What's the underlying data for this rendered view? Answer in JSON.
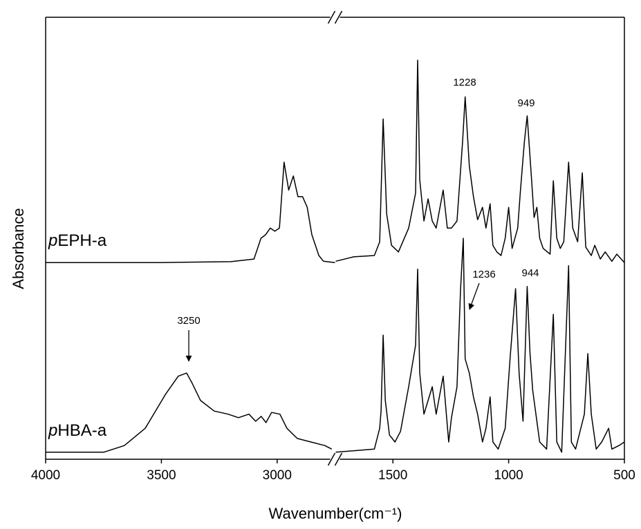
{
  "chart_data": {
    "type": "line",
    "x_label": "Wavenumber(cm⁻¹)",
    "y_label": "Absorbance",
    "xlim": [
      4000,
      500
    ],
    "xbreak": [
      2750,
      1750
    ],
    "xticks": [
      4000,
      3500,
      3000,
      1500,
      1000,
      500
    ],
    "ylim": [
      0,
      100
    ],
    "color": "#000000",
    "annotations": [
      "1228",
      "949",
      "3250",
      "1236",
      "944"
    ],
    "series": [
      {
        "name": "pEPH-a",
        "color": "#000000",
        "x": [
          4000,
          3500,
          3200,
          3100,
          3070,
          3050,
          3030,
          3010,
          2990,
          2970,
          2950,
          2930,
          2910,
          2890,
          2870,
          2850,
          2820,
          2800,
          2750,
          1747,
          1670,
          1580,
          1557,
          1542,
          1527,
          1506,
          1476,
          1432,
          1402,
          1393,
          1384,
          1366,
          1348,
          1330,
          1313,
          1283,
          1265,
          1247,
          1223,
          1199,
          1188,
          1170,
          1152,
          1134,
          1113,
          1098,
          1080,
          1068,
          1051,
          1033,
          1015,
          1000,
          985,
          961,
          949,
          932,
          920,
          902,
          890,
          878,
          866,
          851,
          821,
          807,
          792,
          777,
          762,
          741,
          723,
          702,
          682,
          667,
          643,
          628,
          604,
          583,
          554,
          533,
          500
        ],
        "values": [
          44.5,
          44.5,
          44.7,
          45.3,
          50.0,
          50.8,
          52.3,
          51.6,
          52.3,
          67.2,
          60.9,
          64.1,
          59.4,
          59.4,
          57.0,
          50.8,
          46.1,
          44.8,
          44.5,
          44.8,
          45.8,
          46.1,
          49.2,
          77.0,
          55.5,
          48.4,
          46.9,
          52.3,
          60.2,
          90.3,
          63.3,
          53.9,
          58.9,
          53.9,
          52.3,
          60.9,
          52.3,
          52.3,
          53.9,
          71.9,
          82.0,
          66.4,
          59.4,
          54.2,
          57.0,
          52.3,
          57.8,
          48.4,
          46.9,
          46.1,
          50.0,
          57.0,
          47.7,
          52.3,
          60.9,
          71.9,
          77.7,
          64.1,
          54.7,
          57.0,
          50.0,
          47.7,
          46.4,
          63.0,
          50.0,
          47.7,
          49.2,
          67.2,
          52.3,
          49.2,
          64.8,
          48.0,
          46.1,
          48.4,
          45.3,
          46.9,
          44.8,
          46.4,
          44.5
        ]
      },
      {
        "name": "pHBA-a",
        "color": "#000000",
        "x": [
          4000,
          3749,
          3660,
          3570,
          3481,
          3427,
          3391,
          3367,
          3331,
          3272,
          3212,
          3167,
          3122,
          3093,
          3069,
          3048,
          3024,
          2988,
          2958,
          2913,
          2854,
          2794,
          2764,
          1747,
          1580,
          1557,
          1551,
          1542,
          1533,
          1515,
          1491,
          1467,
          1432,
          1402,
          1393,
          1384,
          1366,
          1348,
          1330,
          1313,
          1283,
          1259,
          1247,
          1223,
          1208,
          1196,
          1188,
          1170,
          1152,
          1134,
          1113,
          1098,
          1080,
          1068,
          1045,
          1015,
          994,
          970,
          955,
          938,
          920,
          908,
          896,
          878,
          866,
          836,
          807,
          792,
          771,
          741,
          729,
          711,
          673,
          658,
          643,
          622,
          598,
          568,
          554,
          524,
          500
        ],
        "values": [
          1.6,
          1.6,
          3.1,
          7.0,
          14.8,
          18.8,
          19.5,
          17.2,
          13.3,
          10.9,
          10.2,
          9.4,
          10.2,
          8.6,
          9.7,
          8.3,
          10.6,
          10.2,
          7.0,
          4.7,
          3.9,
          3.1,
          2.3,
          1.6,
          2.3,
          7.0,
          10.9,
          28.1,
          13.3,
          5.5,
          3.9,
          6.3,
          16.4,
          25.8,
          43.0,
          19.5,
          10.2,
          13.3,
          16.4,
          10.2,
          18.8,
          3.9,
          9.4,
          16.4,
          38.3,
          50.0,
          22.7,
          19.5,
          14.1,
          10.2,
          3.9,
          7.0,
          14.1,
          3.9,
          2.3,
          7.0,
          22.7,
          38.6,
          19.5,
          8.6,
          39.1,
          24.2,
          15.6,
          8.6,
          3.9,
          2.3,
          32.8,
          3.9,
          1.6,
          43.8,
          3.9,
          2.3,
          10.2,
          23.9,
          10.2,
          2.3,
          3.9,
          7.0,
          2.3,
          3.1,
          3.9
        ]
      }
    ]
  }
}
